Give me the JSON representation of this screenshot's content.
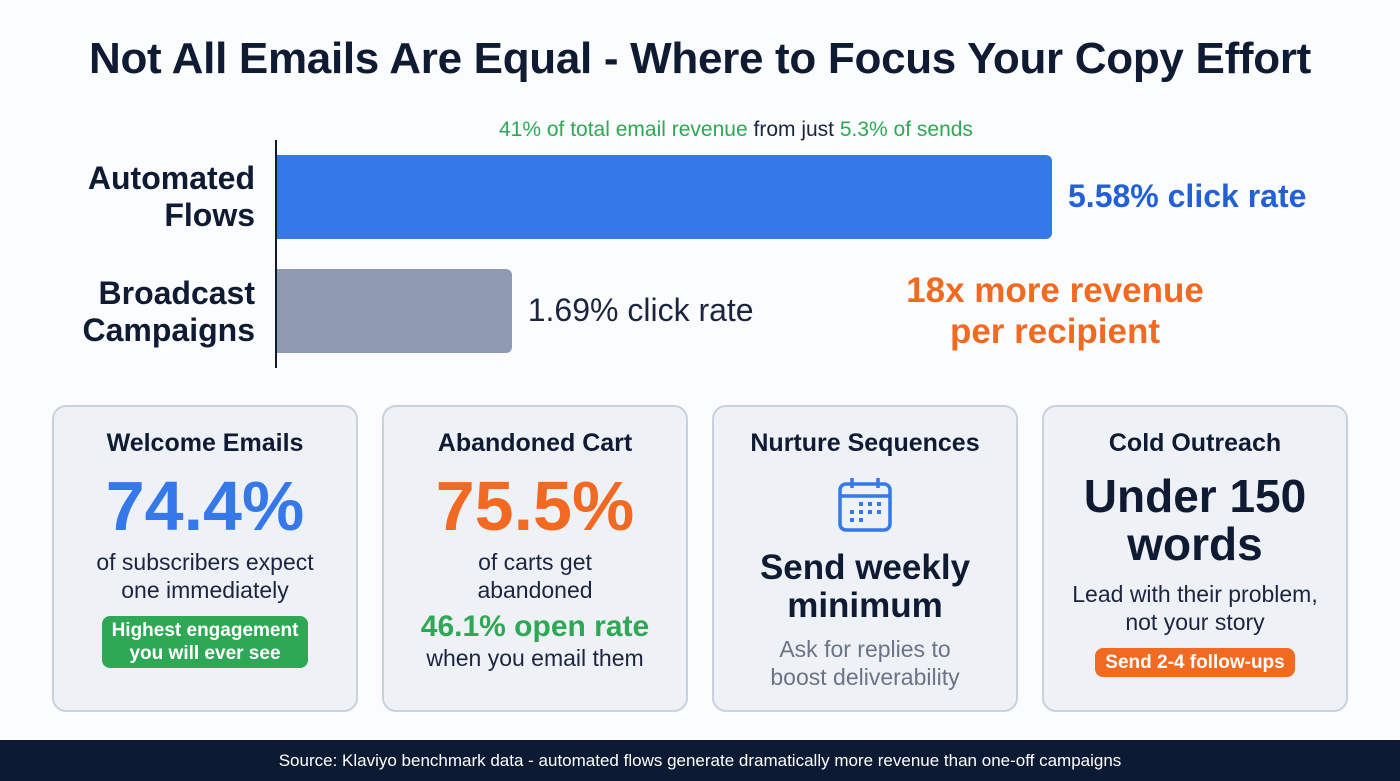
{
  "title": "Not All Emails Are Equal - Where to Focus Your Copy Effort",
  "subtitle": {
    "part1": "41% of total email revenue",
    "part2": " from just ",
    "part3": "5.3% of sends"
  },
  "chart_data": {
    "type": "bar",
    "orientation": "horizontal",
    "categories": [
      "Automated Flows",
      "Broadcast Campaigns"
    ],
    "values": [
      5.58,
      1.69
    ],
    "value_labels": [
      "5.58% click rate",
      "1.69% click rate"
    ],
    "unit": "% click rate",
    "colors": [
      "#3478ea",
      "#8e9bb2"
    ],
    "xlim": [
      0,
      5.58
    ]
  },
  "categories_lines": [
    [
      "Automated",
      "Flows"
    ],
    [
      "Broadcast",
      "Campaigns"
    ]
  ],
  "callout": [
    "18x more revenue",
    "per recipient"
  ],
  "cards": [
    {
      "title": "Welcome Emails",
      "big": "74.4%",
      "text": [
        "of subscribers expect",
        "one immediately"
      ],
      "pill": [
        "Highest engagement",
        "you will ever see"
      ]
    },
    {
      "title": "Abandoned Cart",
      "big": "75.5%",
      "text": [
        "of carts get",
        "abandoned"
      ],
      "stat": "46.1% open rate",
      "stat_text": "when you email them"
    },
    {
      "title": "Nurture Sequences",
      "icon": "calendar-icon",
      "headline": [
        "Send weekly",
        "minimum"
      ],
      "text": [
        "Ask for replies to",
        "boost deliverability"
      ]
    },
    {
      "title": "Cold Outreach",
      "headline": [
        "Under 150",
        "words"
      ],
      "text": [
        "Lead with their problem,",
        "not your story"
      ],
      "pill": "Send 2-4 follow-ups"
    }
  ],
  "footer": "Source: Klaviyo benchmark data - automated flows generate dramatically more revenue than one-off campaigns"
}
